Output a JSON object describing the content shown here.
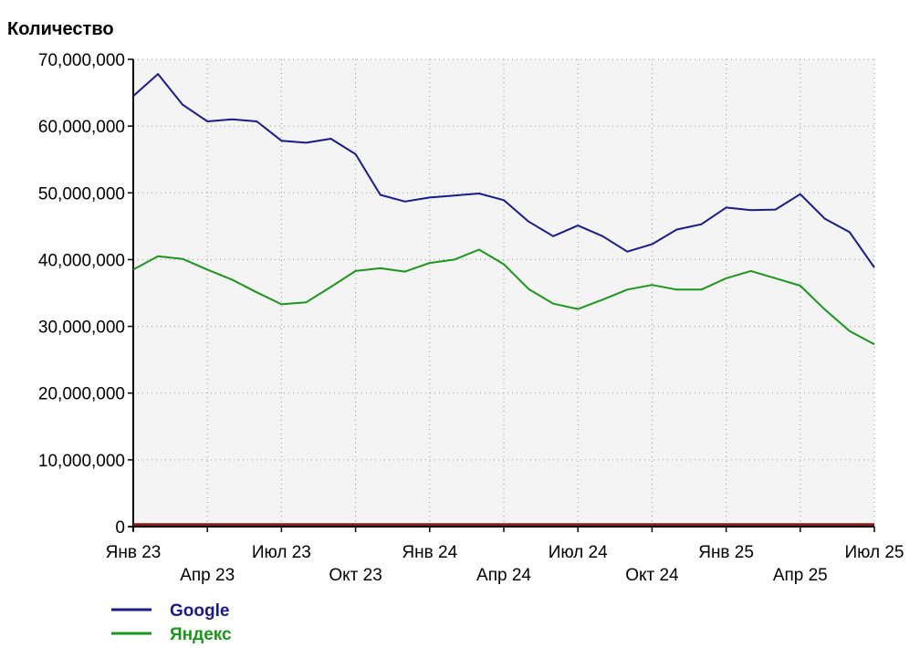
{
  "chart_data": {
    "type": "line",
    "ylabel": "Количество",
    "ylim": [
      0,
      70000000
    ],
    "yticks": [
      0,
      10000000,
      20000000,
      30000000,
      40000000,
      50000000,
      60000000,
      70000000
    ],
    "ytick_labels": [
      "0",
      "10,000,000",
      "20,000,000",
      "30,000,000",
      "40,000,000",
      "50,000,000",
      "60,000,000",
      "70,000,000"
    ],
    "x_tick_labels": [
      {
        "label": "Янв 23",
        "index": 0,
        "row": 1
      },
      {
        "label": "Апр 23",
        "index": 3,
        "row": 2
      },
      {
        "label": "Июл 23",
        "index": 6,
        "row": 1
      },
      {
        "label": "Окт 23",
        "index": 9,
        "row": 2
      },
      {
        "label": "Янв 24",
        "index": 12,
        "row": 1
      },
      {
        "label": "Апр 24",
        "index": 15,
        "row": 2
      },
      {
        "label": "Июл 24",
        "index": 18,
        "row": 1
      },
      {
        "label": "Окт 24",
        "index": 21,
        "row": 2
      },
      {
        "label": "Янв 25",
        "index": 24,
        "row": 1
      },
      {
        "label": "Апр 25",
        "index": 27,
        "row": 2
      },
      {
        "label": "Июл 25",
        "index": 30,
        "row": 1
      }
    ],
    "grid": true,
    "legend_position": "bottom-left",
    "series": [
      {
        "name": "Google",
        "color": "#1a1a8c",
        "values": [
          64500000,
          67800000,
          63200000,
          60700000,
          61000000,
          60700000,
          57800000,
          57500000,
          58100000,
          55800000,
          49700000,
          48700000,
          49300000,
          49600000,
          49900000,
          48900000,
          45700000,
          43500000,
          45100000,
          43500000,
          41200000,
          42300000,
          44500000,
          45300000,
          47800000,
          47400000,
          47500000,
          49800000,
          46100000,
          44100000,
          38800000
        ]
      },
      {
        "name": "Яндекс",
        "color": "#1a961a",
        "values": [
          38500000,
          40500000,
          40100000,
          38500000,
          37000000,
          35100000,
          33300000,
          33600000,
          35900000,
          38300000,
          38700000,
          38200000,
          39500000,
          40000000,
          41500000,
          39300000,
          35600000,
          33400000,
          32600000,
          34000000,
          35500000,
          36200000,
          35500000,
          35500000,
          37200000,
          38300000,
          37200000,
          36100000,
          32500000,
          29300000,
          27300000
        ]
      },
      {
        "name": "",
        "color": "#8b1a1a",
        "values": [
          300000,
          300000,
          300000,
          300000,
          300000,
          300000,
          300000,
          300000,
          300000,
          300000,
          300000,
          300000,
          300000,
          300000,
          300000,
          300000,
          300000,
          300000,
          300000,
          300000,
          300000,
          300000,
          300000,
          300000,
          300000,
          300000,
          300000,
          300000,
          300000,
          300000,
          300000
        ]
      }
    ]
  }
}
